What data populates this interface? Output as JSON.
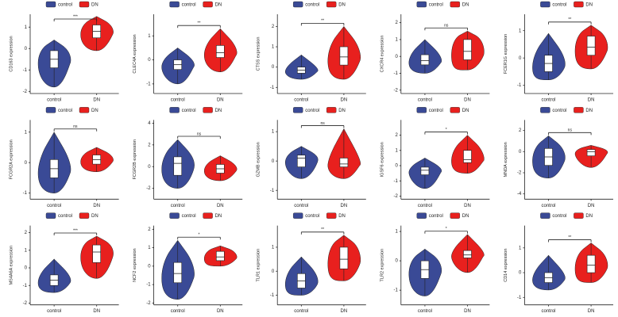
{
  "chart_data": [
    {
      "type": "violin",
      "y_label": "CD163 expression",
      "categories": [
        "control",
        "DN"
      ],
      "colors": [
        "#3a4a96",
        "#e8201e"
      ],
      "ylim": [
        -2.1,
        1.6
      ],
      "yticks": [
        -2,
        -1,
        0,
        1
      ],
      "significance": "***",
      "boxes": [
        {
          "min": -1.8,
          "q1": -0.9,
          "median": -0.5,
          "q3": -0.1,
          "max": 0.4
        },
        {
          "min": -0.1,
          "q1": 0.5,
          "median": 0.8,
          "q3": 1.1,
          "max": 1.5
        }
      ]
    },
    {
      "type": "violin",
      "y_label": "CLEC4A expression",
      "categories": [
        "control",
        "DN"
      ],
      "colors": [
        "#3a4a96",
        "#e8201e"
      ],
      "ylim": [
        -1.4,
        1.9
      ],
      "yticks": [
        -1,
        0,
        1
      ],
      "significance": "**",
      "boxes": [
        {
          "min": -1.0,
          "q1": -0.4,
          "median": -0.2,
          "q3": 0.0,
          "max": 0.5
        },
        {
          "min": -0.5,
          "q1": 0.1,
          "median": 0.3,
          "q3": 0.6,
          "max": 1.3
        }
      ]
    },
    {
      "type": "violin",
      "y_label": "CTSS expression",
      "categories": [
        "control",
        "DN"
      ],
      "colors": [
        "#3a4a96",
        "#e8201e"
      ],
      "ylim": [
        -1.3,
        2.6
      ],
      "yticks": [
        -1,
        0,
        1,
        2
      ],
      "significance": "**",
      "boxes": [
        {
          "min": -0.6,
          "q1": -0.3,
          "median": -0.15,
          "q3": 0.0,
          "max": 0.6
        },
        {
          "min": -0.6,
          "q1": 0.1,
          "median": 0.5,
          "q3": 1.0,
          "max": 2.0
        }
      ]
    },
    {
      "type": "violin",
      "y_label": "CXCR4 expression",
      "categories": [
        "control",
        "DN"
      ],
      "colors": [
        "#3a4a96",
        "#e8201e"
      ],
      "ylim": [
        -2.2,
        2.5
      ],
      "yticks": [
        -2,
        -1,
        0,
        1,
        2
      ],
      "significance": "ns",
      "boxes": [
        {
          "min": -1.0,
          "q1": -0.5,
          "median": -0.25,
          "q3": 0.1,
          "max": 1.0
        },
        {
          "min": -0.8,
          "q1": -0.2,
          "median": 0.3,
          "q3": 1.0,
          "max": 1.5
        }
      ]
    },
    {
      "type": "violin",
      "y_label": "FCER1G expression",
      "categories": [
        "control",
        "DN"
      ],
      "colors": [
        "#3a4a96",
        "#e8201e"
      ],
      "ylim": [
        -1.3,
        1.6
      ],
      "yticks": [
        -1,
        0,
        1
      ],
      "significance": "**",
      "boxes": [
        {
          "min": -0.8,
          "q1": -0.5,
          "median": -0.2,
          "q3": 0.1,
          "max": 0.9
        },
        {
          "min": -0.4,
          "q1": 0.1,
          "median": 0.4,
          "q3": 0.8,
          "max": 1.2
        }
      ]
    },
    {
      "type": "violin",
      "y_label": "FCGR2A expression",
      "categories": [
        "control",
        "DN"
      ],
      "colors": [
        "#3a4a96",
        "#e8201e"
      ],
      "ylim": [
        -1.2,
        1.4
      ],
      "yticks": [
        -1,
        0,
        1
      ],
      "significance": "ns",
      "boxes": [
        {
          "min": -1.0,
          "q1": -0.5,
          "median": -0.2,
          "q3": 0.1,
          "max": 1.0
        },
        {
          "min": -0.3,
          "q1": -0.05,
          "median": 0.1,
          "q3": 0.25,
          "max": 0.5
        }
      ]
    },
    {
      "type": "violin",
      "y_label": "FCGR2B expression",
      "categories": [
        "control",
        "DN"
      ],
      "colors": [
        "#3a4a96",
        "#e8201e"
      ],
      "ylim": [
        -3,
        4.3
      ],
      "yticks": [
        -2,
        0,
        2,
        4
      ],
      "significance": "ns",
      "boxes": [
        {
          "min": -2,
          "q1": -0.8,
          "median": 0.3,
          "q3": 0.9,
          "max": 2.5
        },
        {
          "min": -1.3,
          "q1": -0.6,
          "median": -0.2,
          "q3": 0.2,
          "max": 1.0
        }
      ]
    },
    {
      "type": "violin",
      "y_label": "GZMB expression",
      "categories": [
        "control",
        "DN"
      ],
      "colors": [
        "#3a4a96",
        "#e8201e"
      ],
      "ylim": [
        -1.3,
        1.4
      ],
      "yticks": [
        -1,
        0,
        1
      ],
      "significance": "ns",
      "boxes": [
        {
          "min": -0.6,
          "q1": -0.2,
          "median": 0.1,
          "q3": 0.2,
          "max": 0.5
        },
        {
          "min": -0.6,
          "q1": -0.2,
          "median": -0.1,
          "q3": 0.1,
          "max": 1.1
        }
      ]
    },
    {
      "type": "violin",
      "y_label": "IGSF6 expression",
      "categories": [
        "control",
        "DN"
      ],
      "colors": [
        "#3a4a96",
        "#e8201e"
      ],
      "ylim": [
        -2.2,
        3
      ],
      "yticks": [
        -2,
        -1,
        0,
        1,
        2
      ],
      "significance": "*",
      "boxes": [
        {
          "min": -1.5,
          "q1": -0.6,
          "median": -0.3,
          "q3": -0.1,
          "max": 0.5
        },
        {
          "min": -0.5,
          "q1": 0.2,
          "median": 0.4,
          "q3": 1.0,
          "max": 2.0
        }
      ]
    },
    {
      "type": "violin",
      "y_label": "MNDA expression",
      "categories": [
        "control",
        "DN"
      ],
      "colors": [
        "#3a4a96",
        "#e8201e"
      ],
      "ylim": [
        -4.5,
        3
      ],
      "yticks": [
        -4,
        -2,
        0,
        2
      ],
      "significance": "ns",
      "boxes": [
        {
          "min": -2.5,
          "q1": -1.3,
          "median": -0.5,
          "q3": 0.3,
          "max": 1.5
        },
        {
          "min": -1.5,
          "q1": -0.4,
          "median": 0.0,
          "q3": 0.2,
          "max": 0.6
        }
      ]
    },
    {
      "type": "violin",
      "y_label": "MS4A6A expression",
      "categories": [
        "control",
        "DN"
      ],
      "colors": [
        "#3a4a96",
        "#e8201e"
      ],
      "ylim": [
        -2.1,
        2.4
      ],
      "yticks": [
        -2,
        -1,
        0,
        1,
        2
      ],
      "significance": "***",
      "boxes": [
        {
          "min": -1.4,
          "q1": -1.0,
          "median": -0.7,
          "q3": -0.4,
          "max": 0.5
        },
        {
          "min": -0.6,
          "q1": 0.3,
          "median": 0.9,
          "q3": 1.3,
          "max": 1.8
        }
      ]
    },
    {
      "type": "violin",
      "y_label": "NCF2 expression",
      "categories": [
        "control",
        "DN"
      ],
      "colors": [
        "#3a4a96",
        "#e8201e"
      ],
      "ylim": [
        -2.1,
        2.2
      ],
      "yticks": [
        -2,
        -1,
        0,
        1,
        2
      ],
      "significance": "*",
      "boxes": [
        {
          "min": -1.8,
          "q1": -0.9,
          "median": -0.4,
          "q3": 0.2,
          "max": 1.4
        },
        {
          "min": 0.0,
          "q1": 0.3,
          "median": 0.5,
          "q3": 0.8,
          "max": 1.1
        }
      ]
    },
    {
      "type": "violin",
      "y_label": "TLR1 expression",
      "categories": [
        "control",
        "DN"
      ],
      "colors": [
        "#3a4a96",
        "#e8201e"
      ],
      "ylim": [
        -1.4,
        1.9
      ],
      "yticks": [
        -1,
        0,
        1
      ],
      "significance": "**",
      "boxes": [
        {
          "min": -1.0,
          "q1": -0.7,
          "median": -0.4,
          "q3": -0.1,
          "max": 0.6
        },
        {
          "min": -0.4,
          "q1": 0.1,
          "median": 0.5,
          "q3": 1.0,
          "max": 1.5
        }
      ]
    },
    {
      "type": "violin",
      "y_label": "TLR2 expression",
      "categories": [
        "control",
        "DN"
      ],
      "colors": [
        "#3a4a96",
        "#e8201e"
      ],
      "ylim": [
        -1.5,
        1.2
      ],
      "yticks": [
        -1,
        0,
        1
      ],
      "significance": "*",
      "boxes": [
        {
          "min": -1.2,
          "q1": -0.6,
          "median": -0.3,
          "q3": 0.0,
          "max": 0.4
        },
        {
          "min": -0.4,
          "q1": 0.1,
          "median": 0.2,
          "q3": 0.35,
          "max": 0.9
        }
      ]
    },
    {
      "type": "violin",
      "y_label": "CD14 expression",
      "categories": [
        "control",
        "DN"
      ],
      "colors": [
        "#3a4a96",
        "#e8201e"
      ],
      "ylim": [
        -1.3,
        1.9
      ],
      "yticks": [
        -1,
        0,
        1
      ],
      "significance": "**",
      "boxes": [
        {
          "min": -0.7,
          "q1": -0.4,
          "median": -0.2,
          "q3": 0.0,
          "max": 0.7
        },
        {
          "min": -0.4,
          "q1": 0.0,
          "median": 0.3,
          "q3": 0.7,
          "max": 1.2
        }
      ]
    }
  ]
}
